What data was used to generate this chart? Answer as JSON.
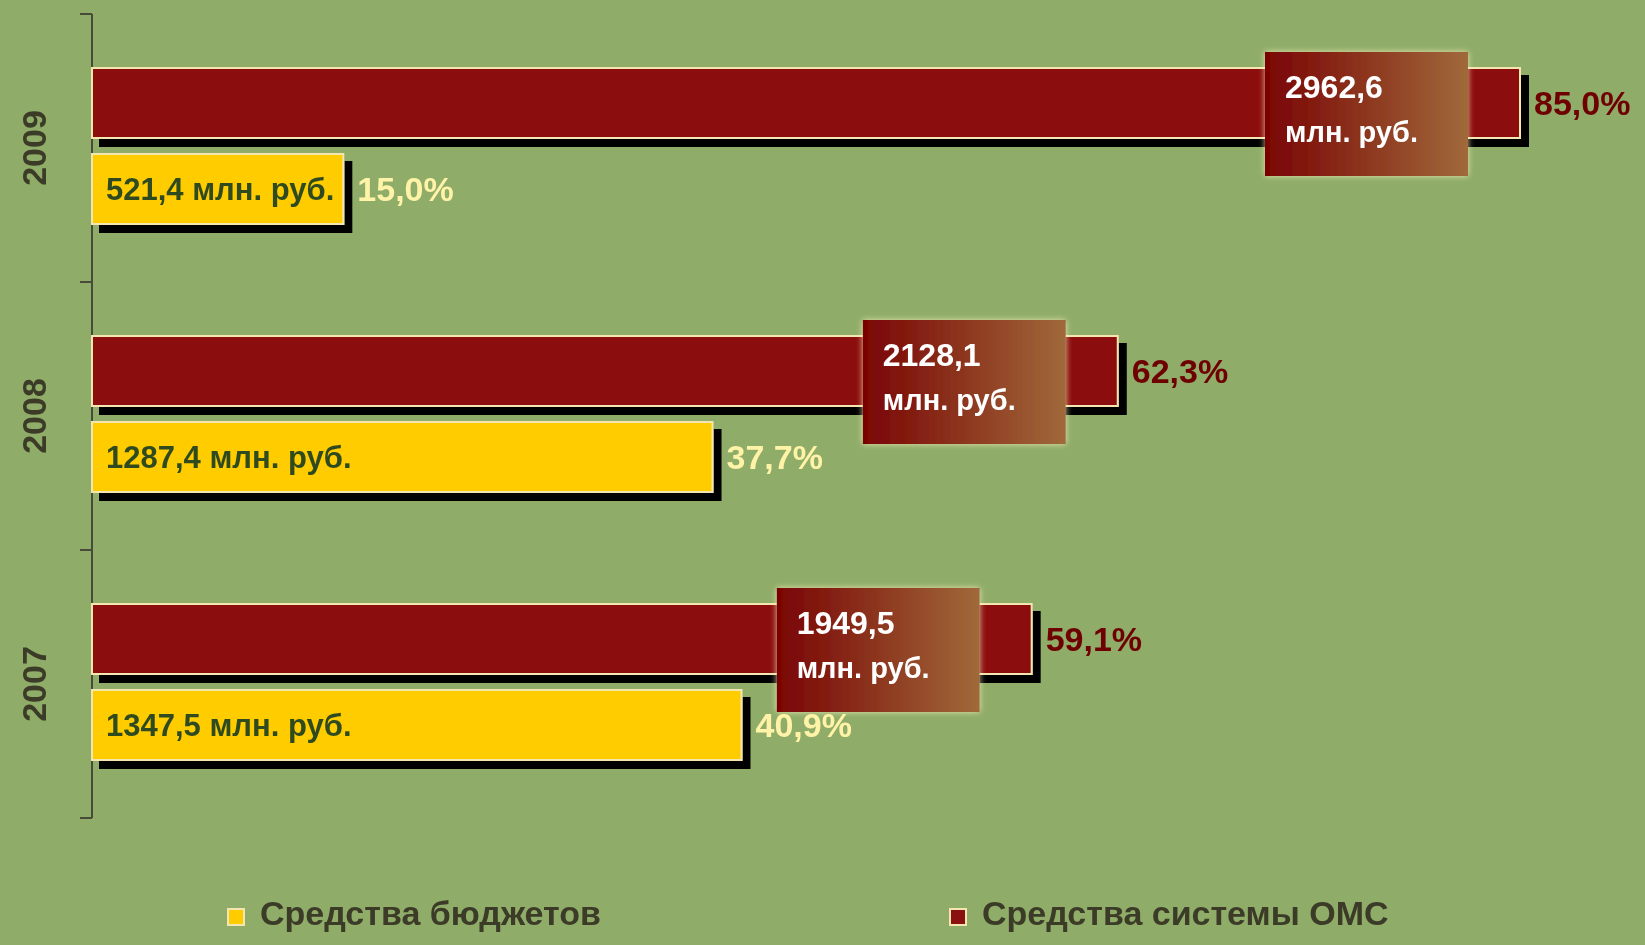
{
  "chart_data": {
    "type": "bar",
    "orientation": "horizontal",
    "categories": [
      "2009",
      "2008",
      "2007"
    ],
    "series": [
      {
        "name": "Средства бюджетов",
        "color": "#ffcc00",
        "values": [
          521.4,
          1287.4,
          1347.5
        ],
        "value_labels": [
          "521,4 млн. руб.",
          "1287,4 млн. руб.",
          "1347,5 млн. руб."
        ]
      },
      {
        "name": "Средства системы ОМС",
        "color": "#8b1010",
        "values": [
          2962.6,
          2128.1,
          1949.5
        ],
        "value_labels": [
          "2962,6 млн. руб.",
          "2128,1 млн. руб.",
          "1949,5 млн. руб."
        ]
      }
    ],
    "annotations": [
      "15,0%",
      "85,0%",
      "37,7%",
      "62,3%",
      "40,9%",
      "59,1%"
    ],
    "legend": "bottom"
  }
}
